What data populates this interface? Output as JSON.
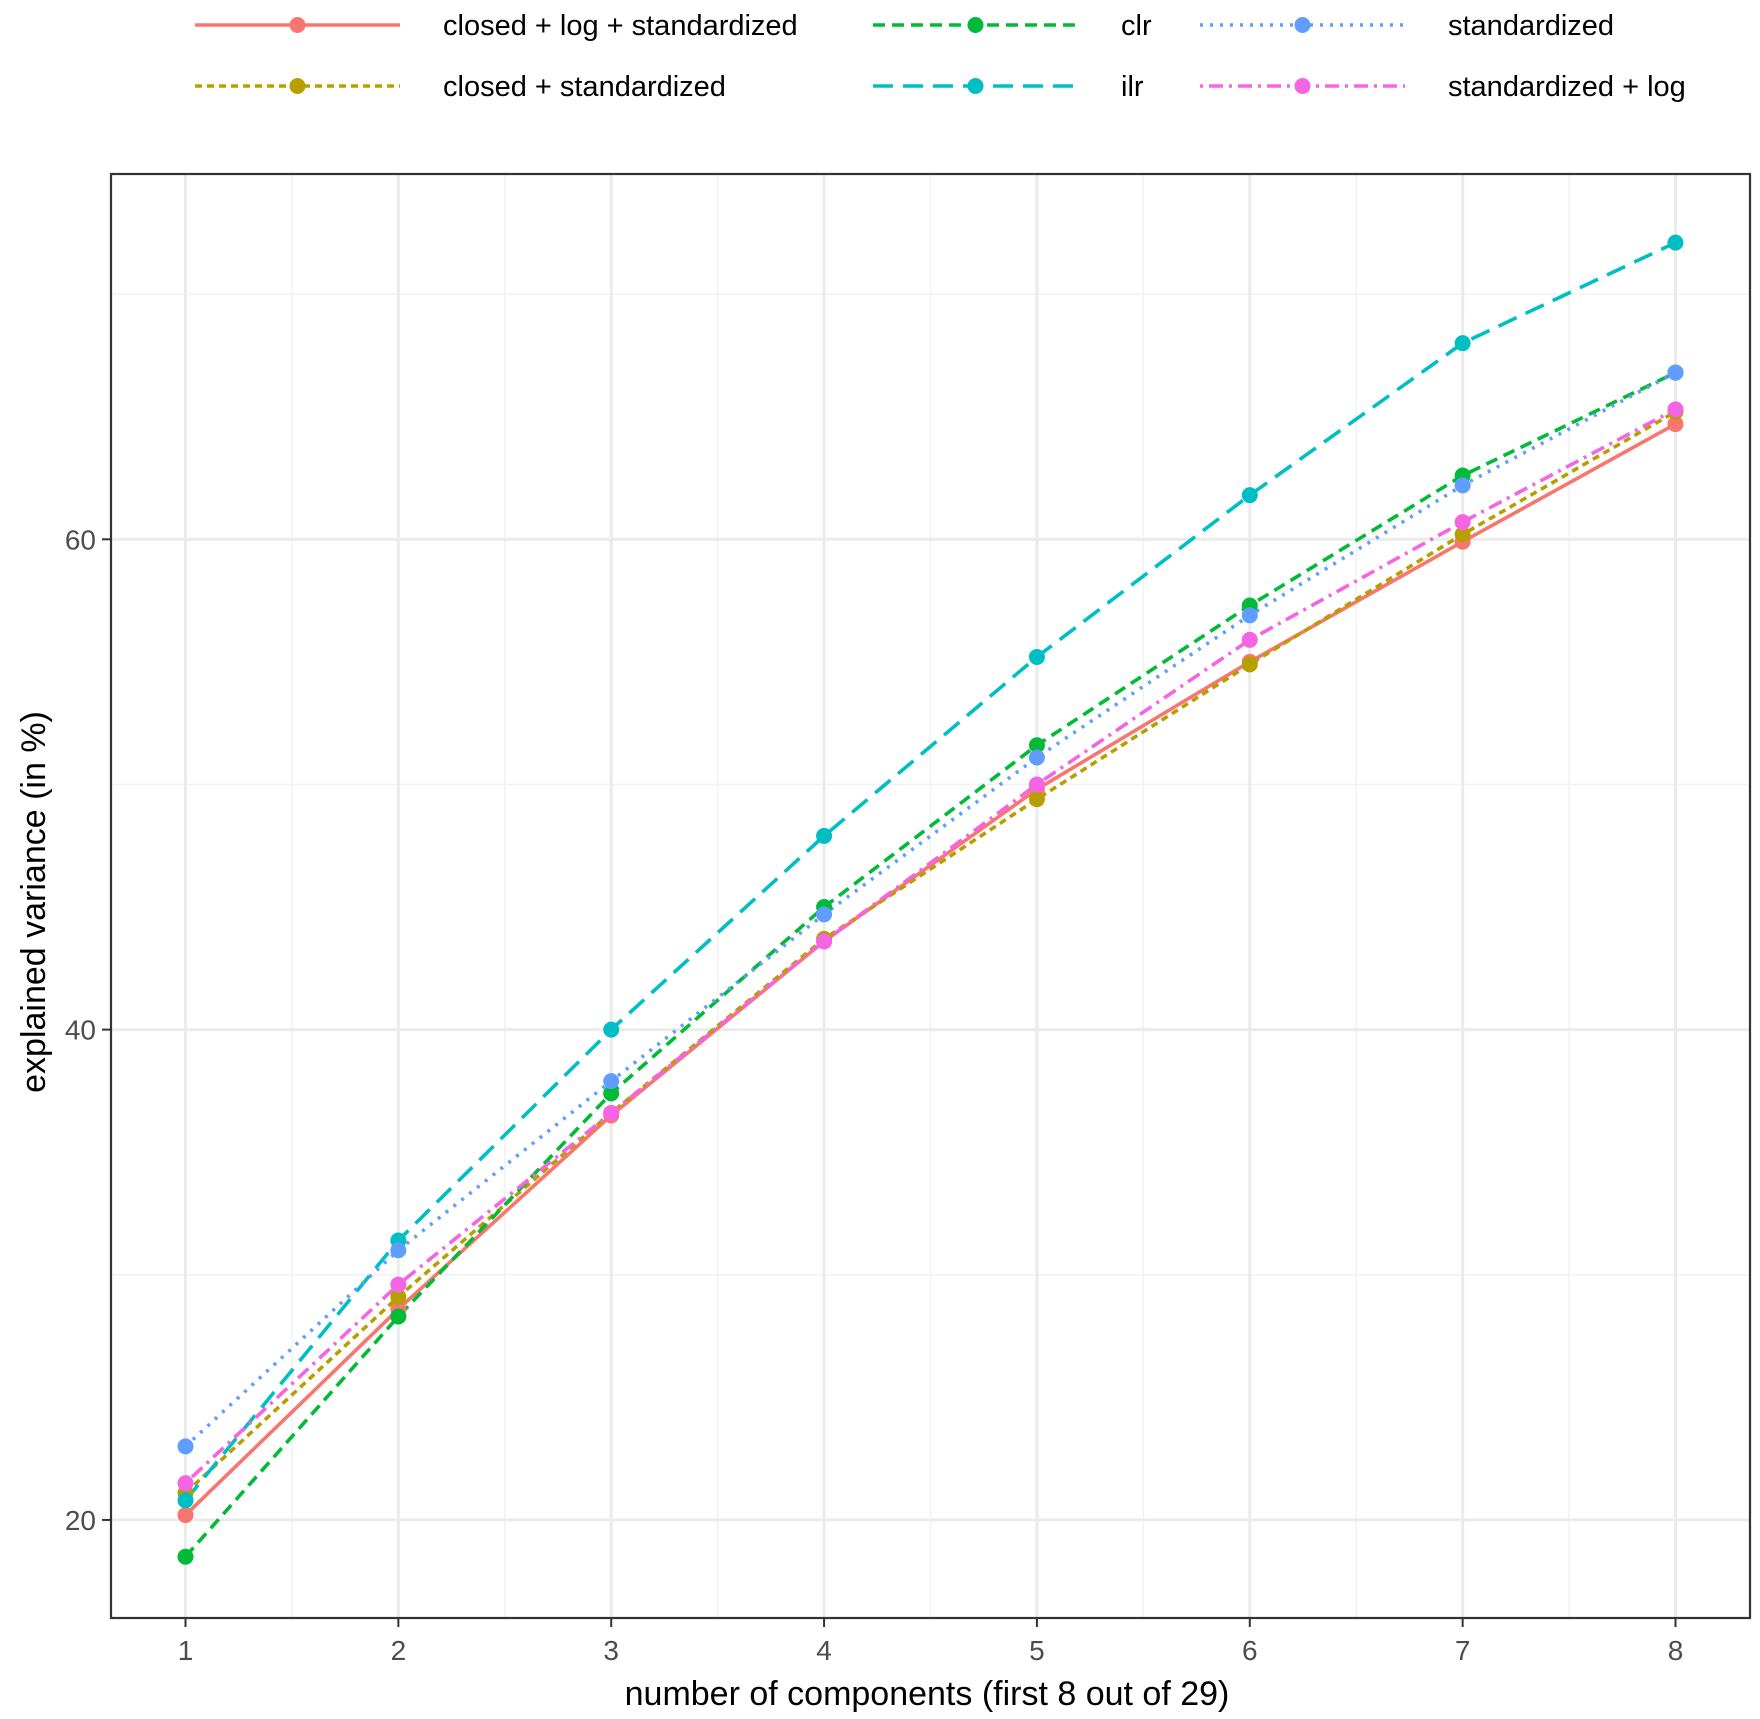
{
  "chart_data": {
    "type": "line",
    "title": "",
    "xlabel": "number of components (first 8 out of 29)",
    "ylabel": "explained variance (in %)",
    "x": [
      1,
      2,
      3,
      4,
      5,
      6,
      7,
      8
    ],
    "xticks": [
      "1",
      "2",
      "3",
      "4",
      "5",
      "6",
      "7",
      "8"
    ],
    "yticks": [
      "20",
      "40",
      "60"
    ],
    "xlim": [
      0.65,
      8.35
    ],
    "ylim": [
      16,
      74.9
    ],
    "grid": true,
    "legend_position": "top",
    "series": [
      {
        "name": "closed + log + standardized",
        "color": "#F8766D",
        "dash": "solid",
        "values": [
          20.2,
          28.6,
          36.5,
          43.6,
          49.8,
          55.0,
          59.9,
          64.7
        ]
      },
      {
        "name": "closed + standardized",
        "color": "#B79F00",
        "dash": "short-dash",
        "values": [
          21.1,
          29.1,
          36.6,
          43.7,
          49.4,
          54.9,
          60.2,
          65.2
        ]
      },
      {
        "name": "clr",
        "color": "#00BA38",
        "dash": "dash",
        "values": [
          18.5,
          28.3,
          37.4,
          45.0,
          51.6,
          57.3,
          62.6,
          66.8
        ]
      },
      {
        "name": "ilr",
        "color": "#00BFC4",
        "dash": "long-dash",
        "values": [
          20.8,
          31.4,
          40.0,
          47.9,
          55.2,
          61.8,
          68.0,
          72.1
        ]
      },
      {
        "name": "standardized",
        "color": "#619CFF",
        "dash": "dotted",
        "values": [
          23.0,
          31.0,
          37.9,
          44.7,
          51.1,
          56.9,
          62.2,
          66.8
        ]
      },
      {
        "name": "standardized + log",
        "color": "#F564E3",
        "dash": "dot-dash",
        "values": [
          21.5,
          29.6,
          36.6,
          43.6,
          50.0,
          55.9,
          60.7,
          65.3
        ]
      }
    ]
  }
}
